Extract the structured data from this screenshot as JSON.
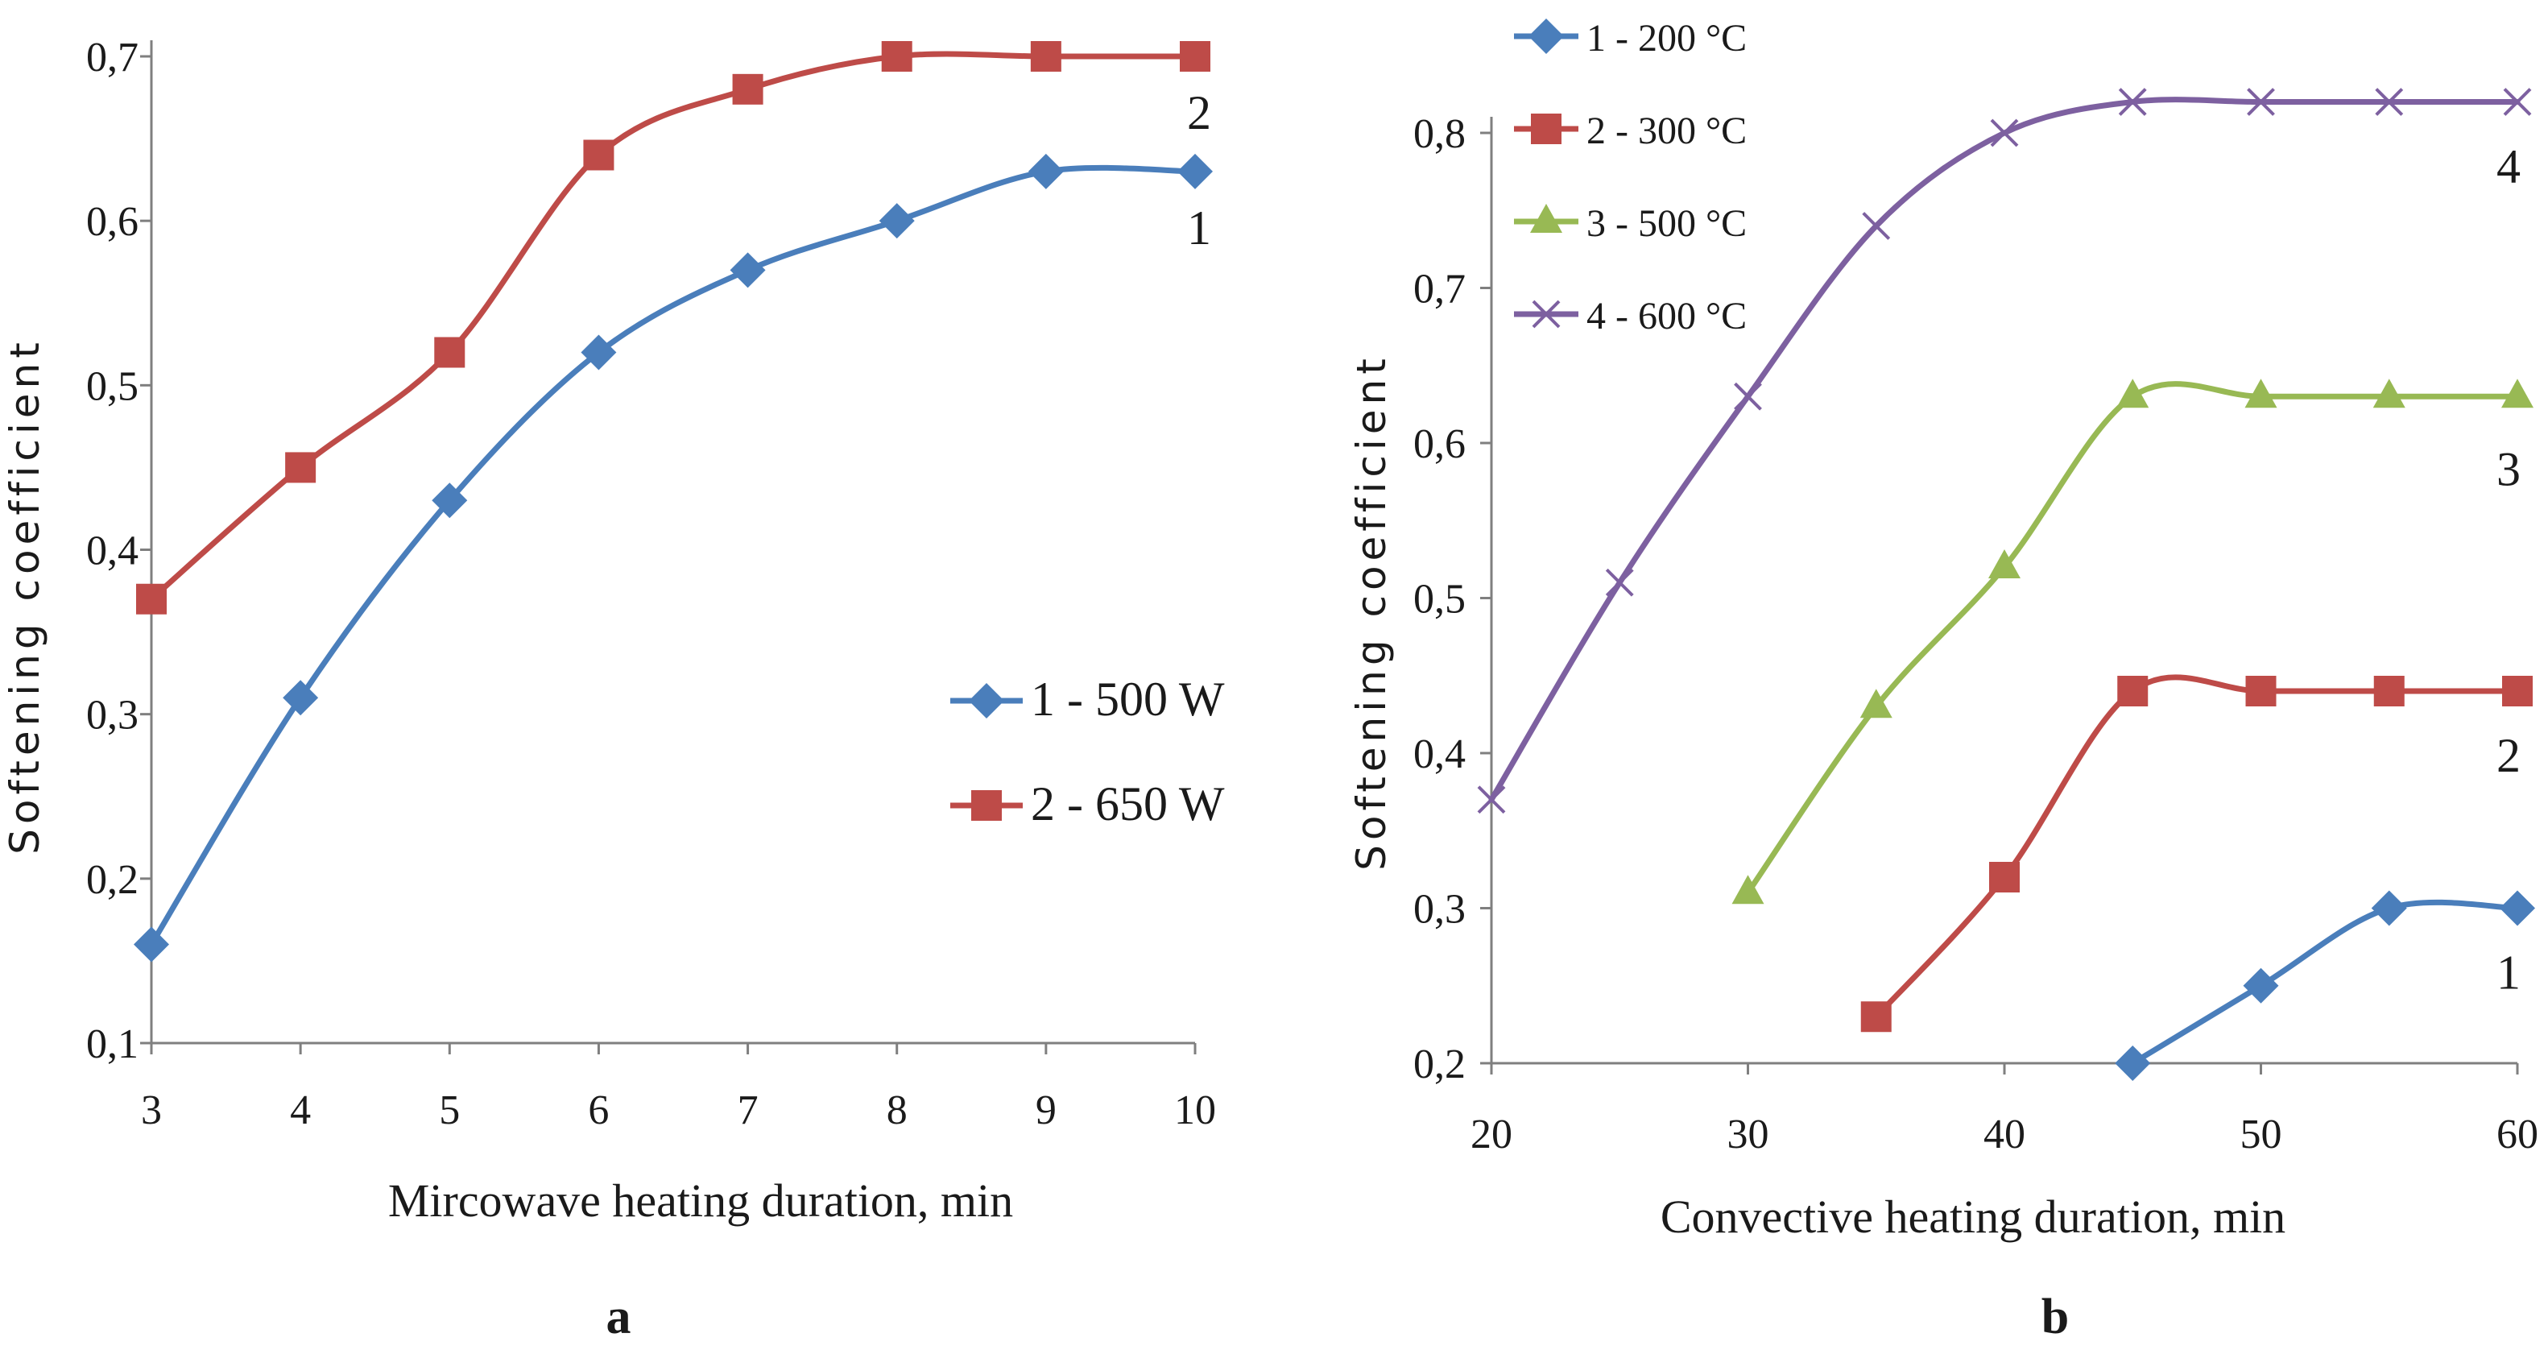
{
  "chart_data": [
    {
      "type": "line",
      "panel_label": "a",
      "xlabel": "Mircowave heating duration, min",
      "ylabel": "Softening coefficient",
      "xlim": [
        3,
        10
      ],
      "ylim": [
        0.1,
        0.7
      ],
      "xticks": [
        3,
        4,
        5,
        6,
        7,
        8,
        9,
        10
      ],
      "xtick_labels": [
        "3",
        "4",
        "5",
        "6",
        "7",
        "8",
        "9",
        "10"
      ],
      "yticks": [
        0.1,
        0.2,
        0.3,
        0.4,
        0.5,
        0.6,
        0.7
      ],
      "ytick_labels": [
        "0,1",
        "0,2",
        "0,3",
        "0,4",
        "0,5",
        "0,6",
        "0,7"
      ],
      "legend_position": "right-center",
      "series": [
        {
          "name": "1 - 500 W",
          "curve_label": "1",
          "color": "#4a7ebb",
          "marker": "diamond",
          "x": [
            3,
            4,
            5,
            6,
            7,
            8,
            9,
            10
          ],
          "y": [
            0.16,
            0.31,
            0.43,
            0.52,
            0.57,
            0.6,
            0.63,
            0.63
          ]
        },
        {
          "name": "2 - 650 W",
          "curve_label": "2",
          "color": "#be4b48",
          "marker": "square",
          "x": [
            3,
            4,
            5,
            6,
            7,
            8,
            9,
            10
          ],
          "y": [
            0.37,
            0.45,
            0.52,
            0.64,
            0.68,
            0.7,
            0.7,
            0.7
          ]
        }
      ]
    },
    {
      "type": "line",
      "panel_label": "b",
      "xlabel": "Convective heating duration, min",
      "ylabel": "Softening coefficient",
      "xlim": [
        20,
        60
      ],
      "ylim": [
        0.2,
        0.8
      ],
      "xticks": [
        20,
        30,
        40,
        50,
        60
      ],
      "xtick_labels": [
        "20",
        "30",
        "40",
        "50",
        "60"
      ],
      "yticks": [
        0.2,
        0.3,
        0.4,
        0.5,
        0.6,
        0.7,
        0.8
      ],
      "ytick_labels": [
        "0,2",
        "0,3",
        "0,4",
        "0,5",
        "0,6",
        "0,7",
        "0,8"
      ],
      "legend_position": "top-left",
      "series": [
        {
          "name": "1 - 200 °C",
          "curve_label": "1",
          "color": "#4a7ebb",
          "marker": "diamond",
          "x": [
            45,
            50,
            55,
            60
          ],
          "y": [
            0.2,
            0.25,
            0.3,
            0.3
          ]
        },
        {
          "name": "2 - 300 °C",
          "curve_label": "2",
          "color": "#be4b48",
          "marker": "square",
          "x": [
            35,
            40,
            45,
            50,
            55,
            60
          ],
          "y": [
            0.23,
            0.32,
            0.44,
            0.44,
            0.44,
            0.44
          ]
        },
        {
          "name": "3 - 500 °C",
          "curve_label": "3",
          "color": "#98b954",
          "marker": "triangle",
          "x": [
            30,
            35,
            40,
            45,
            50,
            55,
            60
          ],
          "y": [
            0.31,
            0.43,
            0.52,
            0.63,
            0.63,
            0.63,
            0.63
          ]
        },
        {
          "name": "4 - 600 °C",
          "curve_label": "4",
          "color": "#7d60a0",
          "marker": "x",
          "x": [
            20,
            25,
            30,
            35,
            40,
            45,
            50,
            55,
            60
          ],
          "y": [
            0.37,
            0.51,
            0.63,
            0.74,
            0.8,
            0.82,
            0.82,
            0.82,
            0.82
          ]
        }
      ]
    }
  ]
}
